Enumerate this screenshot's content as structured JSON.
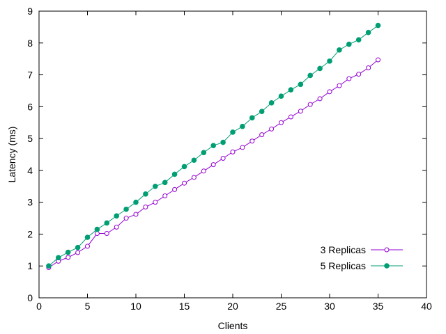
{
  "chart_data": {
    "type": "line",
    "title": "",
    "xlabel": "Clients",
    "ylabel": "Latency (ms)",
    "xlim": [
      0,
      40
    ],
    "ylim": [
      0,
      9
    ],
    "xticks": [
      "0",
      "5",
      "10",
      "15",
      "20",
      "25",
      "30",
      "35",
      "40"
    ],
    "yticks": [
      "0",
      "1",
      "2",
      "3",
      "4",
      "5",
      "6",
      "7",
      "8",
      "9"
    ],
    "grid": false,
    "legend_position": "bottom-right",
    "x": [
      1,
      2,
      3,
      4,
      5,
      6,
      7,
      8,
      9,
      10,
      11,
      12,
      13,
      14,
      15,
      16,
      17,
      18,
      19,
      20,
      21,
      22,
      23,
      24,
      25,
      26,
      27,
      28,
      29,
      30,
      31,
      32,
      33,
      34,
      35
    ],
    "series": [
      {
        "name": "3 Replicas",
        "color": "#9400d3",
        "marker": "open-circle",
        "values": [
          0.95,
          1.15,
          1.27,
          1.42,
          1.62,
          2.02,
          2.02,
          2.22,
          2.5,
          2.62,
          2.85,
          3.0,
          3.2,
          3.4,
          3.6,
          3.78,
          3.98,
          4.18,
          4.38,
          4.58,
          4.72,
          4.92,
          5.12,
          5.3,
          5.5,
          5.68,
          5.86,
          6.07,
          6.25,
          6.47,
          6.66,
          6.88,
          7.02,
          7.22,
          7.47
        ]
      },
      {
        "name": "5 Replicas",
        "color": "#009e73",
        "marker": "filled-circle",
        "values": [
          1.0,
          1.26,
          1.43,
          1.58,
          1.9,
          2.15,
          2.35,
          2.57,
          2.78,
          3.0,
          3.26,
          3.5,
          3.62,
          3.88,
          4.12,
          4.32,
          4.56,
          4.78,
          4.88,
          5.2,
          5.38,
          5.65,
          5.85,
          6.12,
          6.33,
          6.53,
          6.7,
          6.98,
          7.2,
          7.43,
          7.78,
          7.96,
          8.1,
          8.33,
          8.55
        ]
      }
    ]
  }
}
